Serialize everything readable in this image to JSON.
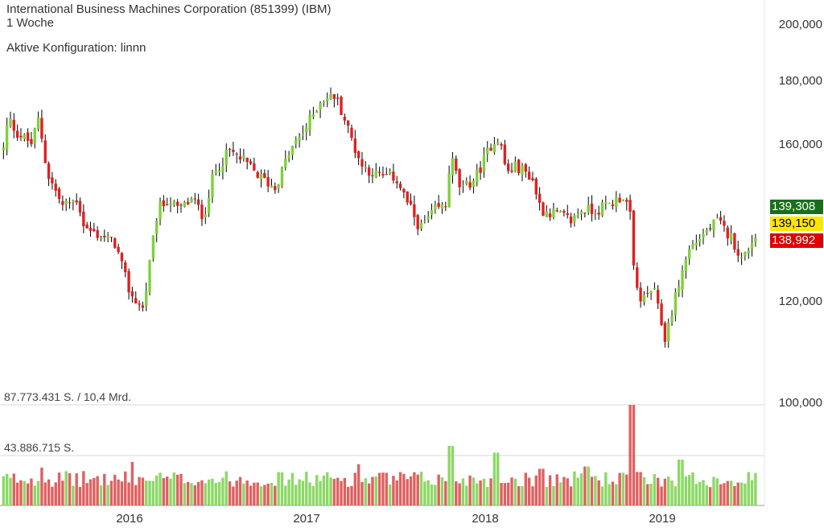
{
  "header": {
    "title": "International Business Machines Corporation (851399) (IBM)",
    "interval": "1 Woche",
    "config": "Aktive Konfiguration: linnn"
  },
  "volume_labels": {
    "max": "87.773.431 S. / 10,4 Mrd.",
    "half": "43.886.715 S."
  },
  "price_boxes": {
    "high": "139,308",
    "last": "139,150",
    "low": "138,992"
  },
  "colors": {
    "up": "#7fd13b",
    "down": "#e02020",
    "volume_up": "#8cd866",
    "volume_down": "#e06060",
    "high_box": "#1a6e1a",
    "last_box": "#ffe600",
    "low_box": "#e00000"
  },
  "chart_data": {
    "type": "candlestick",
    "y_ticks": [
      {
        "value": 200,
        "label": "200,000"
      },
      {
        "value": 180,
        "label": "180,000"
      },
      {
        "value": 160,
        "label": "160,000"
      },
      {
        "value": 120,
        "label": "120,000"
      },
      {
        "value": 100,
        "label": "100,000"
      }
    ],
    "x_ticks": [
      "2016",
      "2017",
      "2018",
      "2019"
    ],
    "ylim": [
      100,
      200
    ],
    "volume_max": 87773431,
    "anchors": [
      [
        "2015-05-01",
        158
      ],
      [
        "2015-05-15",
        170
      ],
      [
        "2015-06-01",
        166
      ],
      [
        "2015-07-01",
        163
      ],
      [
        "2015-07-15",
        170
      ],
      [
        "2015-08-01",
        155
      ],
      [
        "2015-09-01",
        146
      ],
      [
        "2015-10-01",
        148
      ],
      [
        "2015-10-15",
        140
      ],
      [
        "2015-11-15",
        138
      ],
      [
        "2015-12-15",
        136
      ],
      [
        "2016-01-15",
        122
      ],
      [
        "2016-02-10",
        118
      ],
      [
        "2016-03-10",
        145
      ],
      [
        "2016-04-01",
        148
      ],
      [
        "2016-04-20",
        145
      ],
      [
        "2016-05-20",
        148
      ],
      [
        "2016-06-10",
        143
      ],
      [
        "2016-07-01",
        155
      ],
      [
        "2016-08-01",
        161
      ],
      [
        "2016-09-01",
        158
      ],
      [
        "2016-10-01",
        154
      ],
      [
        "2016-11-01",
        151
      ],
      [
        "2016-12-01",
        161
      ],
      [
        "2017-01-01",
        167
      ],
      [
        "2017-02-01",
        175
      ],
      [
        "2017-03-01",
        176
      ],
      [
        "2017-03-15",
        172
      ],
      [
        "2017-04-10",
        162
      ],
      [
        "2017-04-25",
        157
      ],
      [
        "2017-06-01",
        154
      ],
      [
        "2017-07-01",
        154
      ],
      [
        "2017-08-01",
        145
      ],
      [
        "2017-08-20",
        140
      ],
      [
        "2017-09-20",
        145
      ],
      [
        "2017-10-10",
        146
      ],
      [
        "2017-10-20",
        160
      ],
      [
        "2017-11-10",
        150
      ],
      [
        "2017-12-10",
        154
      ],
      [
        "2018-01-10",
        163
      ],
      [
        "2018-01-25",
        165
      ],
      [
        "2018-02-10",
        155
      ],
      [
        "2018-03-01",
        157
      ],
      [
        "2018-04-01",
        154
      ],
      [
        "2018-04-20",
        145
      ],
      [
        "2018-05-20",
        144
      ],
      [
        "2018-06-20",
        142
      ],
      [
        "2018-07-10",
        145
      ],
      [
        "2018-08-10",
        145
      ],
      [
        "2018-09-10",
        147
      ],
      [
        "2018-10-01",
        149
      ],
      [
        "2018-10-15",
        145
      ],
      [
        "2018-10-25",
        125
      ],
      [
        "2018-11-10",
        120
      ],
      [
        "2018-12-01",
        124
      ],
      [
        "2018-12-25",
        110
      ],
      [
        "2019-01-20",
        124
      ],
      [
        "2019-02-10",
        134
      ],
      [
        "2019-03-01",
        137
      ],
      [
        "2019-04-10",
        142
      ],
      [
        "2019-04-20",
        140
      ],
      [
        "2019-05-10",
        137
      ],
      [
        "2019-05-30",
        131
      ],
      [
        "2019-06-15",
        136
      ],
      [
        "2019-06-30",
        139.15
      ]
    ],
    "volume_spikes": [
      [
        "2018-10-20",
        87773431
      ],
      [
        "2017-10-20",
        52000000
      ],
      [
        "2018-01-20",
        46000000
      ],
      [
        "2019-01-25",
        40000000
      ],
      [
        "2017-04-20",
        36000000
      ],
      [
        "2016-01-20",
        38000000
      ],
      [
        "2015-07-20",
        33000000
      ],
      [
        "2018-04-20",
        32000000
      ],
      [
        "2018-07-20",
        34000000
      ]
    ]
  }
}
